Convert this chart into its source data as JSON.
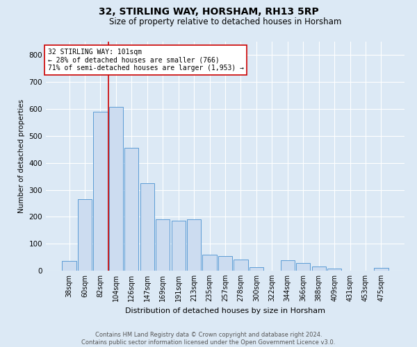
{
  "title1": "32, STIRLING WAY, HORSHAM, RH13 5RP",
  "title2": "Size of property relative to detached houses in Horsham",
  "xlabel": "Distribution of detached houses by size in Horsham",
  "ylabel": "Number of detached properties",
  "categories": [
    "38sqm",
    "60sqm",
    "82sqm",
    "104sqm",
    "126sqm",
    "147sqm",
    "169sqm",
    "191sqm",
    "213sqm",
    "235sqm",
    "257sqm",
    "278sqm",
    "300sqm",
    "322sqm",
    "344sqm",
    "366sqm",
    "388sqm",
    "409sqm",
    "431sqm",
    "453sqm",
    "475sqm"
  ],
  "values": [
    35,
    265,
    590,
    607,
    455,
    325,
    190,
    185,
    190,
    60,
    55,
    42,
    12,
    0,
    38,
    28,
    15,
    8,
    0,
    0,
    10
  ],
  "bar_color": "#ccdcf0",
  "bar_edge_color": "#5b9bd5",
  "vline_color": "#cc0000",
  "vline_x_index": 3,
  "annotation_line1": "32 STIRLING WAY: 101sqm",
  "annotation_line2": "← 28% of detached houses are smaller (766)",
  "annotation_line3": "71% of semi-detached houses are larger (1,953) →",
  "annotation_box_facecolor": "#ffffff",
  "annotation_box_edgecolor": "#cc0000",
  "ylim": [
    0,
    850
  ],
  "yticks": [
    0,
    100,
    200,
    300,
    400,
    500,
    600,
    700,
    800
  ],
  "footer1": "Contains HM Land Registry data © Crown copyright and database right 2024.",
  "footer2": "Contains public sector information licensed under the Open Government Licence v3.0.",
  "bg_color": "#dce9f5",
  "plot_bg_color": "#dce9f5",
  "title1_fontsize": 10,
  "title2_fontsize": 8.5,
  "xlabel_fontsize": 8,
  "ylabel_fontsize": 7.5,
  "xtick_fontsize": 7,
  "ytick_fontsize": 7.5,
  "annotation_fontsize": 7,
  "footer_fontsize": 6
}
